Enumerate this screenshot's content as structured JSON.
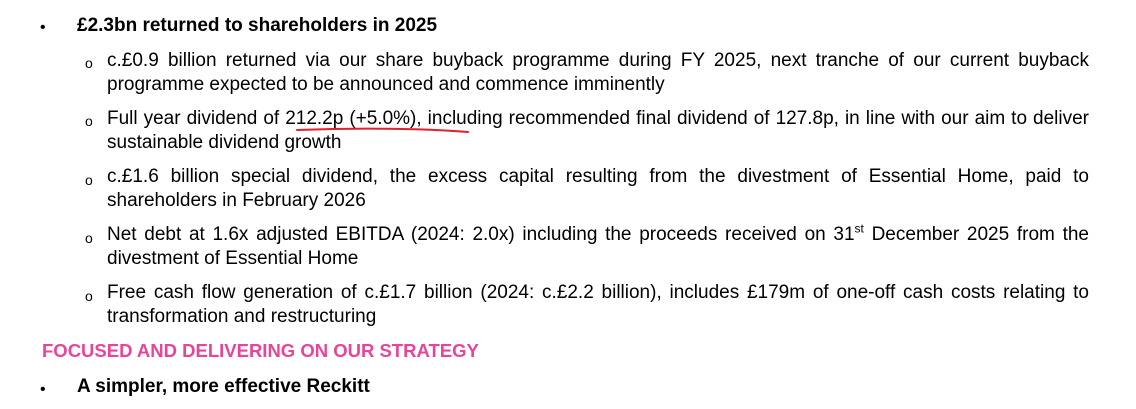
{
  "bullet_symbol": "•",
  "sub_bullet_symbol": "o",
  "section1": {
    "heading": "£2.3bn returned to shareholders in 2025",
    "items": [
      {
        "text": "c.£0.9 billion returned via our share buyback programme during FY 2025, next tranche of our current buyback programme expected to be announced and commence imminently"
      },
      {
        "text_a": "Full year dividend of ",
        "text_underlined": "212.2p (+5.0%)",
        "text_b": ", including recommended final dividend of 127.8p, in line with our aim to deliver sustainable dividend growth"
      },
      {
        "text": "c.£1.6 billion special dividend, the excess capital resulting from the divestment of Essential Home, paid to shareholders in February 2026"
      },
      {
        "text_a": "Net debt at 1.6x adjusted EBITDA (2024: 2.0x) including the proceeds received on 31",
        "text_sup": "st",
        "text_b": " December 2025 from the divestment of Essential Home"
      },
      {
        "text": "Free cash flow generation of c.£1.7 billion (2024: c.£2.2 billion), includes £179m of one-off cash costs relating to transformation and restructuring"
      }
    ]
  },
  "section_heading": "FOCUSED AND DELIVERING ON OUR STRATEGY",
  "section2": {
    "heading": "A simpler, more effective Reckitt"
  },
  "colors": {
    "text": "#000000",
    "section_heading": "#e8449a",
    "annotation_underline": "#e0202a"
  }
}
